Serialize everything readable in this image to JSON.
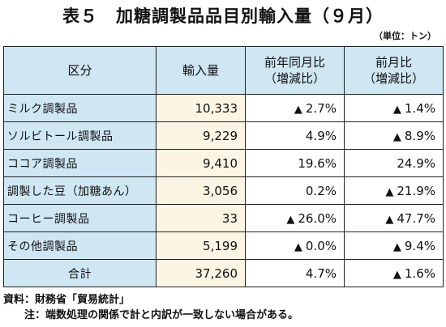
{
  "title": "表５　加糖調製品品目別輸入量（９月）",
  "unit": "（単位：トン）",
  "table": {
    "headers": [
      "区分",
      "輸入量",
      "前年同月比\n（増減比）",
      "前月比\n（増減比）"
    ],
    "rows": [
      {
        "label": "ミルク調製品",
        "volume": "10,333",
        "yoy": "2.7%",
        "yoy_tri": "▲",
        "mom": "1.4%",
        "mom_tri": "▲"
      },
      {
        "label": "ソルビトール調製品",
        "volume": "9,229",
        "yoy": "4.9%",
        "yoy_tri": "",
        "mom": "8.9%",
        "mom_tri": "▲"
      },
      {
        "label": "ココア調製品",
        "volume": "9,410",
        "yoy": "19.6%",
        "yoy_tri": "",
        "mom": "24.9%",
        "mom_tri": ""
      },
      {
        "label": "調製した豆（加糖あん）",
        "volume": "3,056",
        "yoy": "0.2%",
        "yoy_tri": "",
        "mom": "21.9%",
        "mom_tri": "▲"
      },
      {
        "label": "コーヒー調製品",
        "volume": "33",
        "yoy": "26.0%",
        "yoy_tri": "▲",
        "mom": "47.7%",
        "mom_tri": "▲"
      },
      {
        "label": "その他調製品",
        "volume": "5,199",
        "yoy": "0.0%",
        "yoy_tri": "▲",
        "mom": "9.4%",
        "mom_tri": "▲"
      }
    ],
    "total": {
      "label": "合計",
      "volume": "37,260",
      "yoy": "4.7%",
      "yoy_tri": "",
      "mom": "1.6%",
      "mom_tri": "▲"
    }
  },
  "notes": {
    "source": "資料：財務省「貿易統計」",
    "note": "注：端数処理の関係で計と内訳が一致しない場合がある。"
  }
}
